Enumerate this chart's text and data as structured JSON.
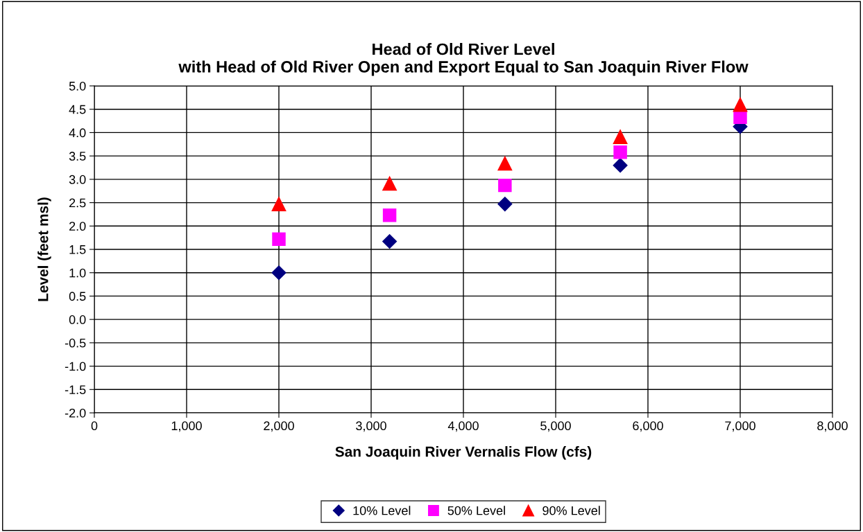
{
  "chart_data": {
    "type": "scatter",
    "title": "Head of Old River Level\nwith Head of Old River Open and Export Equal to San Joaquin River Flow",
    "xlabel": "San Joaquin River Vernalis Flow (cfs)",
    "ylabel": "Level (feet msl)",
    "x": [
      2000,
      3200,
      4450,
      5700,
      7000
    ],
    "series": [
      {
        "name": "10% Level",
        "color": "#000080",
        "marker": "diamond",
        "values": [
          1.0,
          1.67,
          2.47,
          3.3,
          4.13
        ]
      },
      {
        "name": "50% Level",
        "color": "#ff00ff",
        "marker": "square",
        "values": [
          1.72,
          2.23,
          2.87,
          3.58,
          4.33
        ]
      },
      {
        "name": "90% Level",
        "color": "#ff0000",
        "marker": "triangle",
        "values": [
          2.47,
          2.91,
          3.34,
          3.91,
          4.6
        ]
      }
    ],
    "xlim": [
      0,
      8000
    ],
    "xticks": [
      {
        "value": 0,
        "label": "0"
      },
      {
        "value": 1000,
        "label": "1,000"
      },
      {
        "value": 2000,
        "label": "2,000"
      },
      {
        "value": 3000,
        "label": "3,000"
      },
      {
        "value": 4000,
        "label": "4,000"
      },
      {
        "value": 5000,
        "label": "5,000"
      },
      {
        "value": 6000,
        "label": "6,000"
      },
      {
        "value": 7000,
        "label": "7,000"
      },
      {
        "value": 8000,
        "label": "8,000"
      }
    ],
    "ylim": [
      -2.0,
      5.0
    ],
    "yticks": [
      {
        "value": -2,
        "label": "-2.0"
      },
      {
        "value": -1.5,
        "label": "-1.5"
      },
      {
        "value": -1,
        "label": "-1.0"
      },
      {
        "value": -0.5,
        "label": "-0.5"
      },
      {
        "value": 0,
        "label": "0.0"
      },
      {
        "value": 0.5,
        "label": "0.5"
      },
      {
        "value": 1,
        "label": "1.0"
      },
      {
        "value": 1.5,
        "label": "1.5"
      },
      {
        "value": 2,
        "label": "2.0"
      },
      {
        "value": 2.5,
        "label": "2.5"
      },
      {
        "value": 3,
        "label": "3.0"
      },
      {
        "value": 3.5,
        "label": "3.5"
      },
      {
        "value": 4,
        "label": "4.0"
      },
      {
        "value": 4.5,
        "label": "4.5"
      },
      {
        "value": 5,
        "label": "5.0"
      }
    ],
    "grid": true,
    "legend": "bottom"
  }
}
